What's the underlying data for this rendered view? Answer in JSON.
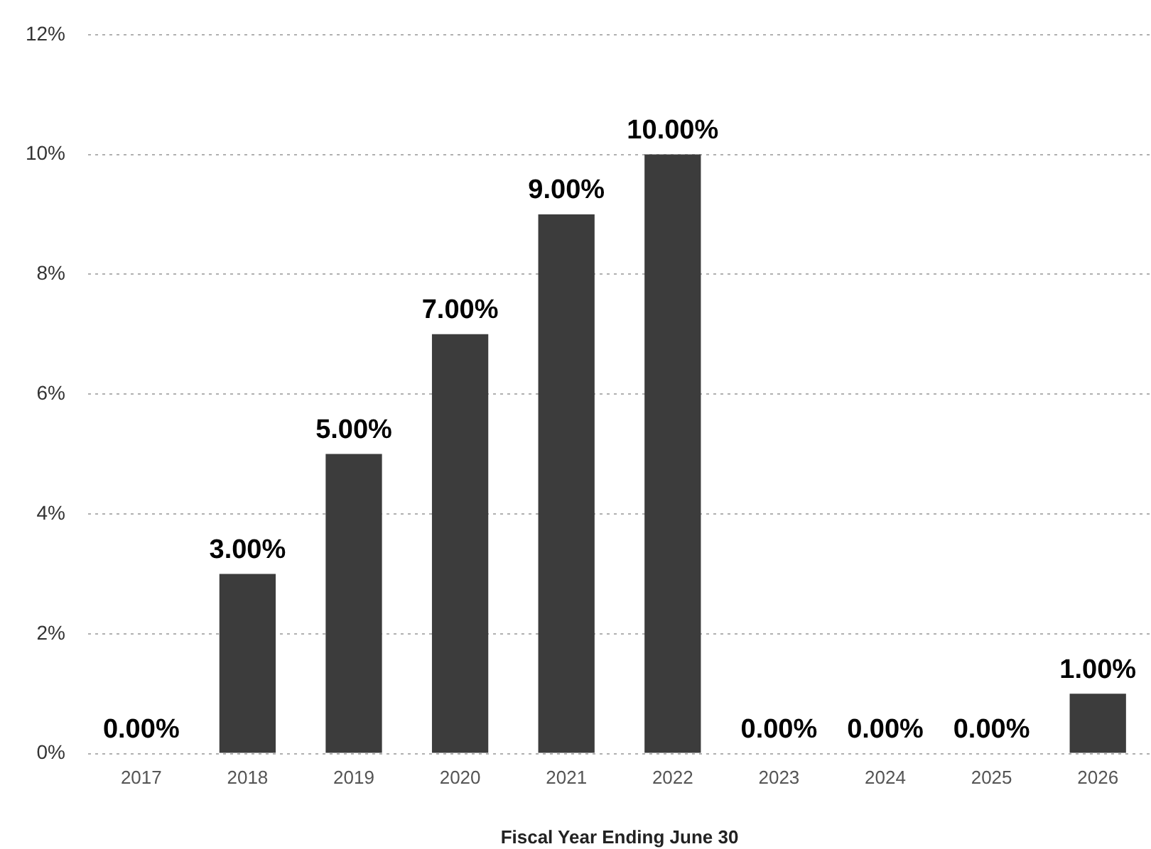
{
  "chart_data": {
    "type": "bar",
    "xlabel": "Fiscal Year Ending June 30",
    "categories": [
      "2017",
      "2018",
      "2019",
      "2020",
      "2021",
      "2022",
      "2023",
      "2024",
      "2025",
      "2026"
    ],
    "values": [
      0,
      3,
      5,
      7,
      9,
      10,
      0,
      0,
      0,
      1
    ],
    "value_labels": [
      "0.00%",
      "3.00%",
      "5.00%",
      "7.00%",
      "9.00%",
      "10.00%",
      "0.00%",
      "0.00%",
      "0.00%",
      "1.00%"
    ],
    "color": "#3c3c3c",
    "ylim": [
      0,
      12
    ],
    "yticks": [
      {
        "value": 0,
        "label": "0%"
      },
      {
        "value": 2,
        "label": "2%"
      },
      {
        "value": 4,
        "label": "4%"
      },
      {
        "value": 6,
        "label": "6%"
      },
      {
        "value": 8,
        "label": "8%"
      },
      {
        "value": 10,
        "label": "10%"
      },
      {
        "value": 12,
        "label": "12%"
      }
    ],
    "grid": "y"
  }
}
